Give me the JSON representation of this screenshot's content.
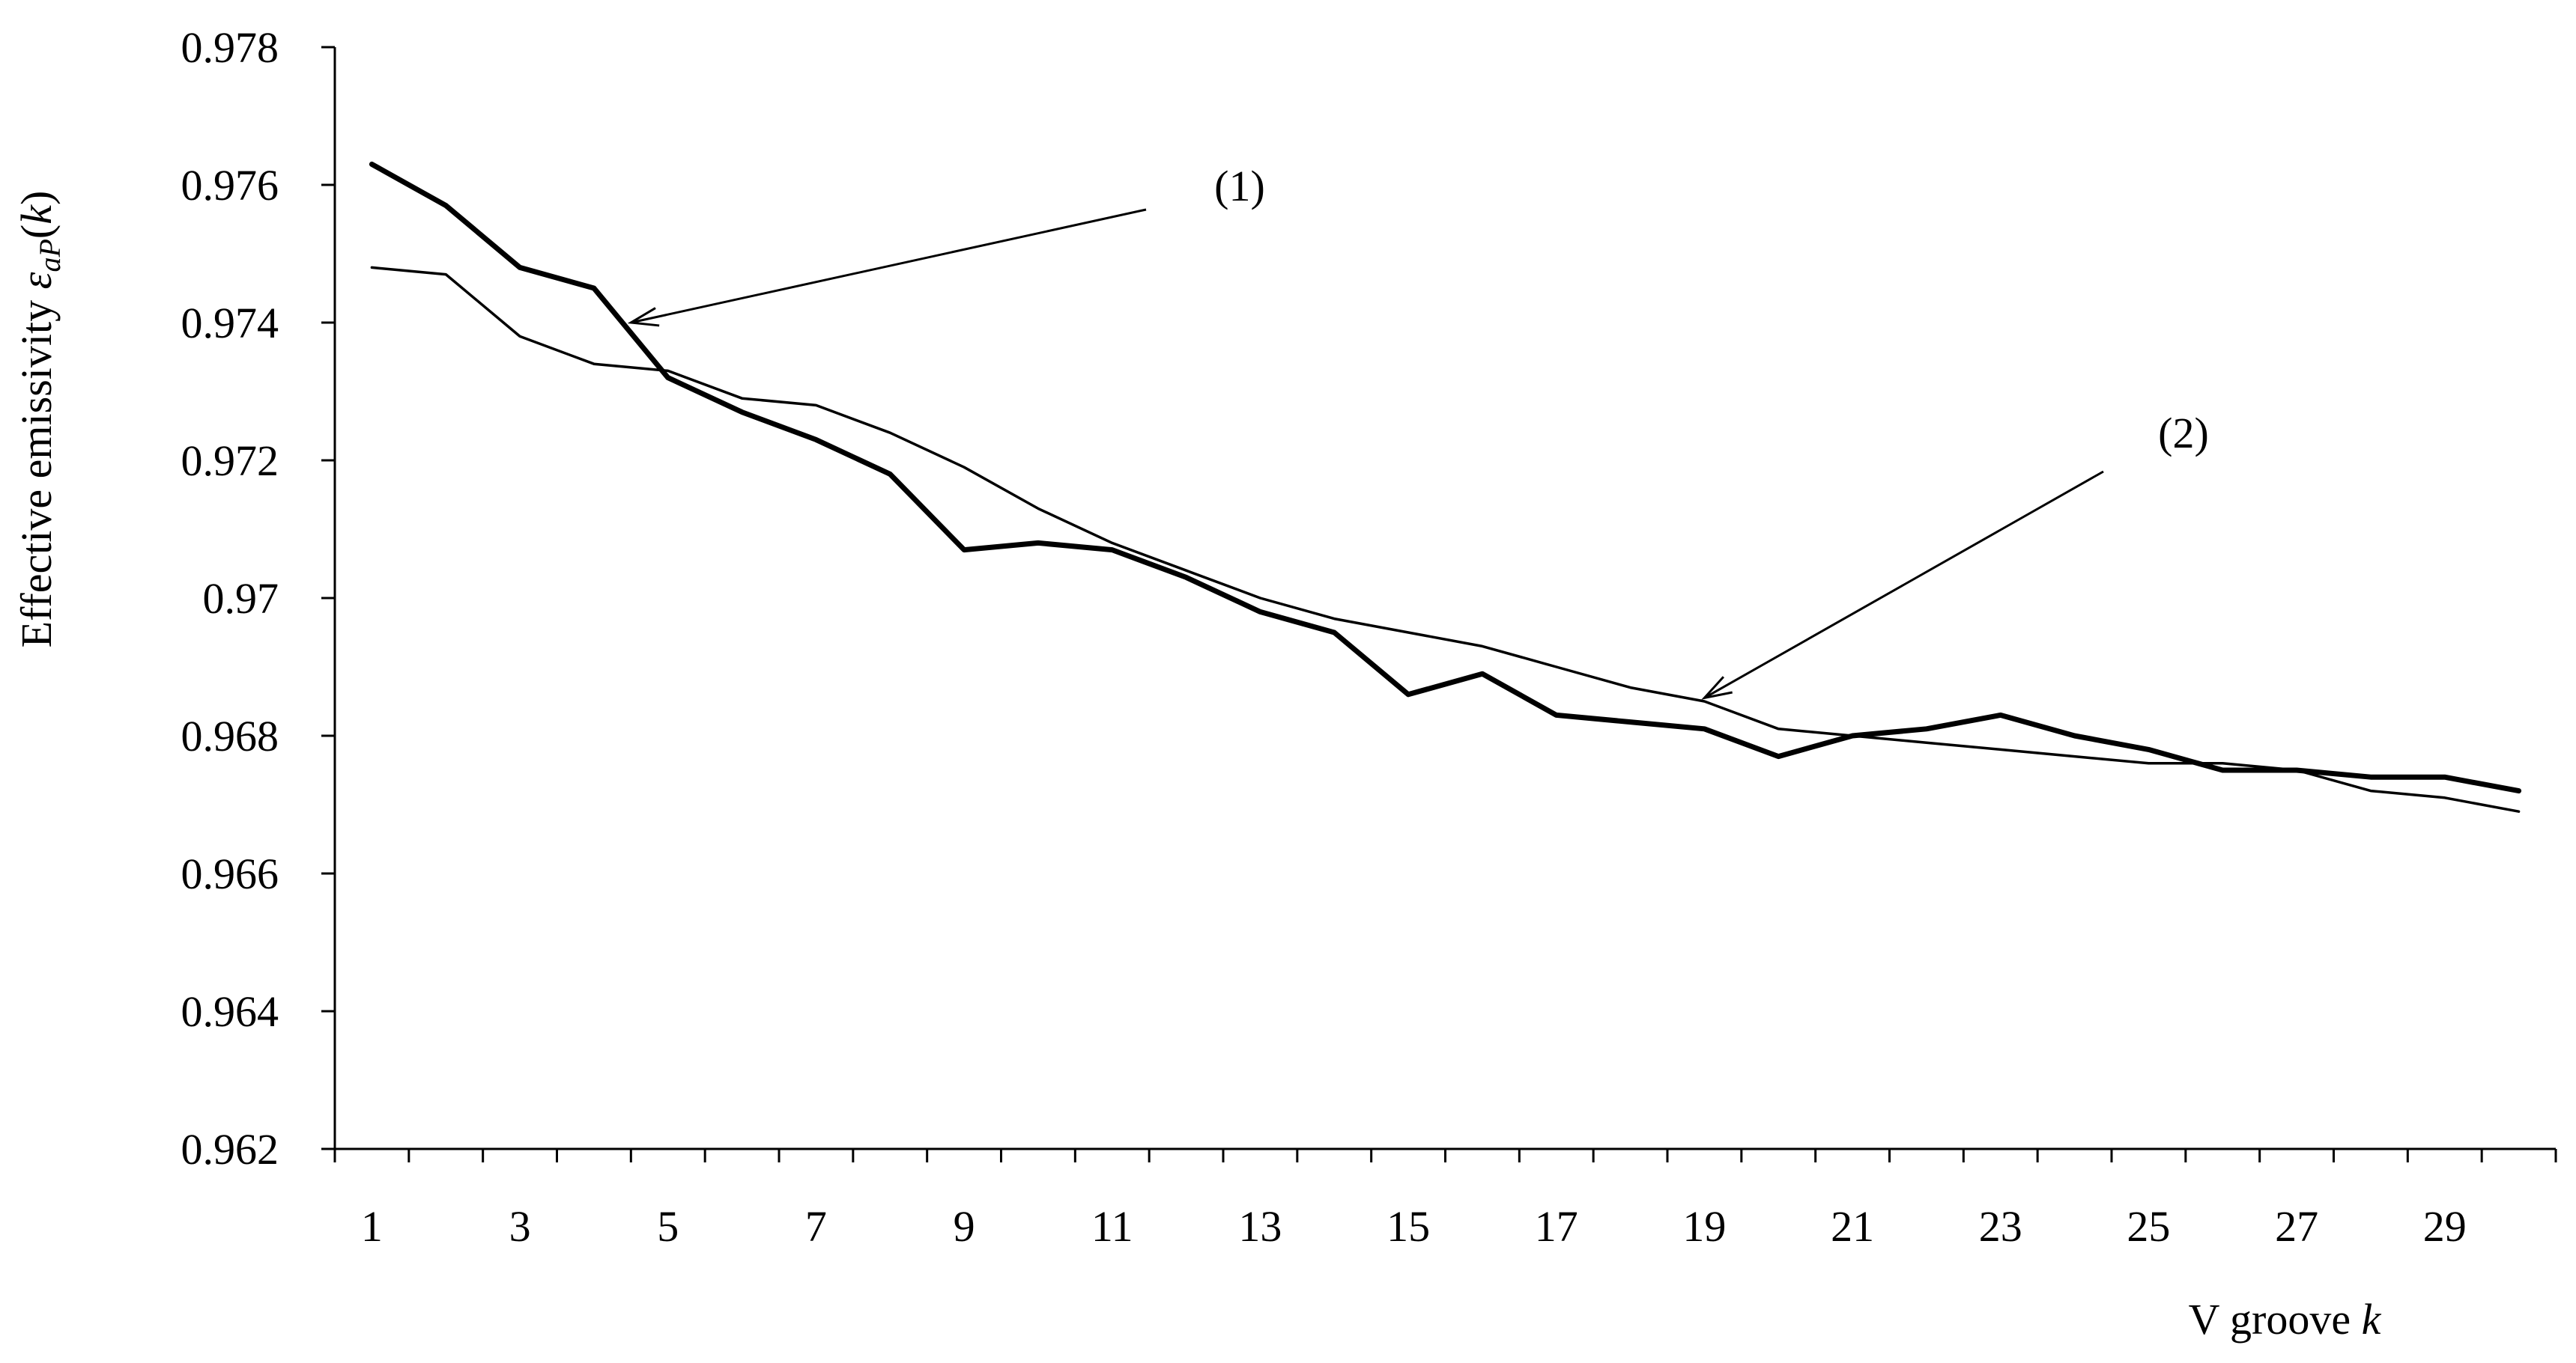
{
  "chart_data": {
    "type": "line",
    "title": "",
    "ylabel": {
      "prefix": "Effective emissivity ",
      "symbol": "ε",
      "subscript": "aP",
      "open": "(",
      "var": "k",
      "close": ")"
    },
    "xlabel": {
      "prefix": "V groove ",
      "var": "k"
    },
    "ylim": [
      0.962,
      0.978
    ],
    "xlim": [
      0.5,
      30.5
    ],
    "yticks": [
      "0.962",
      "0.964",
      "0.966",
      "0.968",
      "0.97",
      "0.972",
      "0.974",
      "0.976",
      "0.978"
    ],
    "xticks": [
      "1",
      "3",
      "5",
      "7",
      "9",
      "11",
      "13",
      "15",
      "17",
      "19",
      "21",
      "23",
      "25",
      "27",
      "29"
    ],
    "x": [
      1,
      2,
      3,
      4,
      5,
      6,
      7,
      8,
      9,
      10,
      11,
      12,
      13,
      14,
      15,
      16,
      17,
      18,
      19,
      20,
      21,
      22,
      23,
      24,
      25,
      26,
      27,
      28,
      29,
      30
    ],
    "series": [
      {
        "values": [
          0.9763,
          0.9757,
          0.9748,
          0.9745,
          0.9732,
          0.9727,
          0.9723,
          0.9718,
          0.9707,
          0.9708,
          0.9707,
          0.9703,
          0.9698,
          0.9695,
          0.9686,
          0.9689,
          0.9683,
          0.9682,
          0.9681,
          0.9677,
          0.968,
          0.9681,
          0.9683,
          0.968,
          0.9678,
          0.9675,
          0.9675,
          0.9674,
          0.9674,
          0.9672
        ],
        "color": "#000000"
      },
      {
        "values": [
          0.9748,
          0.9747,
          0.9738,
          0.9734,
          0.9733,
          0.9729,
          0.9728,
          0.9724,
          0.9719,
          0.9713,
          0.9708,
          0.9704,
          0.97,
          0.9697,
          0.9695,
          0.9693,
          0.969,
          0.9687,
          0.9685,
          0.9681,
          0.968,
          0.9679,
          0.9678,
          0.9677,
          0.9676,
          0.9676,
          0.9675,
          0.9672,
          0.9671,
          0.9669
        ],
        "color": "#000000"
      }
    ],
    "annotations": [
      {
        "text": "(1)",
        "series": 0,
        "point_x": 4.5,
        "point_y": 0.974
      },
      {
        "text": "(2)",
        "series": 1,
        "point_x": 19,
        "point_y": 0.96855
      }
    ],
    "grid": false,
    "legend": "none"
  }
}
